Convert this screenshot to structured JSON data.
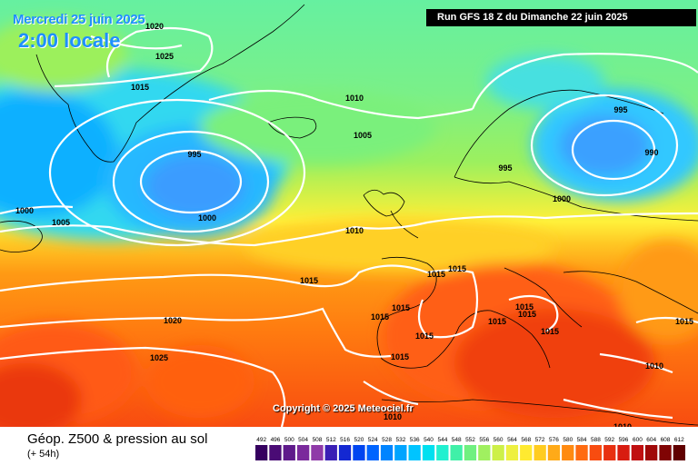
{
  "header": {
    "date": "Mercredi 25 juin 2025",
    "time": "2:00 locale",
    "run": "Run GFS 18 Z du Dimanche 22 juin 2025"
  },
  "copyright": "Copyright © 2025 Meteociel.fr",
  "footer": {
    "title": "Géop. Z500 & pression au sol",
    "subtitle": "(+ 54h)"
  },
  "legend": {
    "unit_values": [
      "492",
      "496",
      "500",
      "504",
      "508",
      "512",
      "516",
      "520",
      "524",
      "528",
      "532",
      "536",
      "540",
      "544",
      "548",
      "552",
      "556",
      "560",
      "564",
      "568",
      "572",
      "576",
      "580",
      "584",
      "588",
      "592",
      "596",
      "600",
      "604",
      "608",
      "612"
    ],
    "colors": [
      "#35005f",
      "#4a0b75",
      "#5f1a8b",
      "#7a2a9c",
      "#8f3aa8",
      "#3a1fb5",
      "#1428d2",
      "#0045f0",
      "#0064ff",
      "#0084ff",
      "#00a4ff",
      "#00c4ff",
      "#00e0f0",
      "#20f0d0",
      "#40f0a8",
      "#70f080",
      "#a0f060",
      "#cdf048",
      "#eef040",
      "#ffea30",
      "#ffcc20",
      "#ffaa18",
      "#ff8a10",
      "#ff6a10",
      "#f84c10",
      "#e83010",
      "#d81c10",
      "#c00f10",
      "#a00808",
      "#800404",
      "#600000"
    ]
  },
  "pressure_labels": [
    {
      "text": "1020"
    },
    {
      "text": "1025"
    },
    {
      "text": "1015"
    },
    {
      "text": "1010"
    },
    {
      "text": "1005"
    },
    {
      "text": "995"
    },
    {
      "text": "1000"
    },
    {
      "text": "1000"
    },
    {
      "text": "1005"
    },
    {
      "text": "995"
    },
    {
      "text": "995"
    },
    {
      "text": "990"
    },
    {
      "text": "1000"
    },
    {
      "text": "1010"
    },
    {
      "text": "1015"
    },
    {
      "text": "1015"
    },
    {
      "text": "1015"
    },
    {
      "text": "1015"
    },
    {
      "text": "1015"
    },
    {
      "text": "1015"
    },
    {
      "text": "1015"
    },
    {
      "text": "1015"
    },
    {
      "text": "1015"
    },
    {
      "text": "1015"
    },
    {
      "text": "1015"
    },
    {
      "text": "1020"
    },
    {
      "text": "1025"
    },
    {
      "text": "1010"
    },
    {
      "text": "1010"
    },
    {
      "text": "1010"
    },
    {
      "text": "1015"
    }
  ]
}
